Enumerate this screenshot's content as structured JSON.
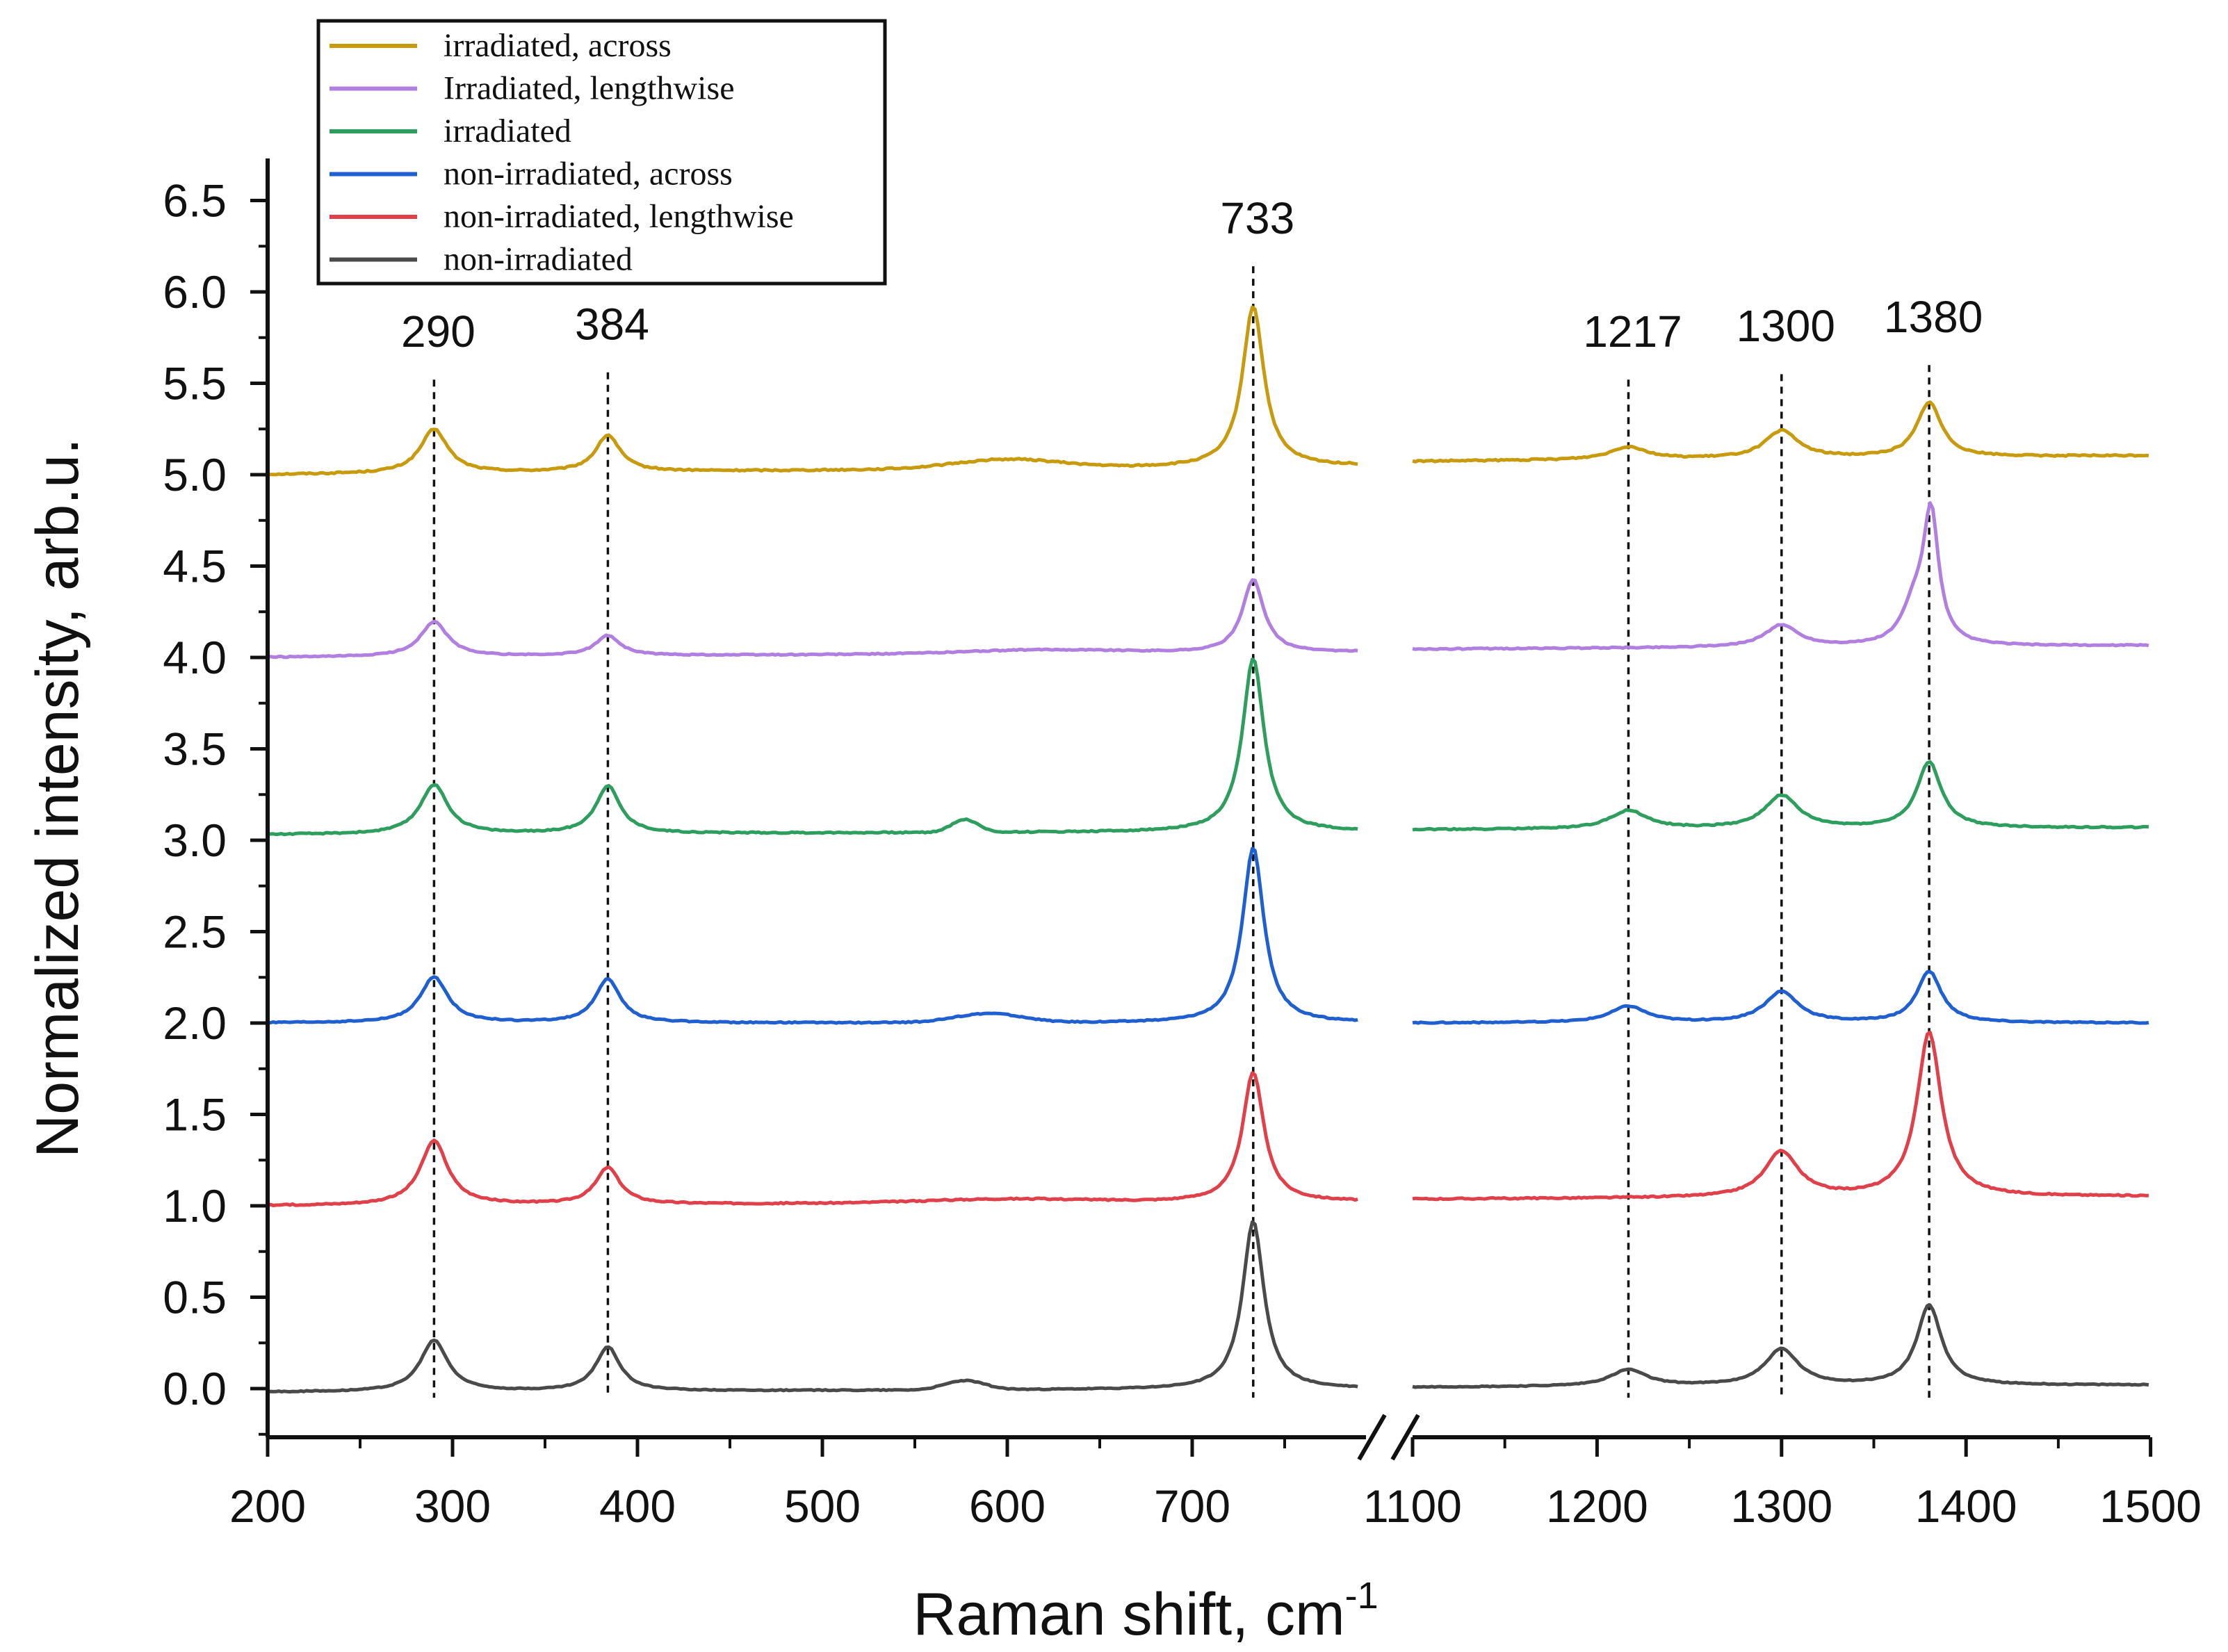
{
  "chart_data": {
    "type": "line",
    "title": "",
    "xlabel": "Raman shift, cm",
    "xlabel_sup": "-1",
    "ylabel": "Normalized intensity, arb.u.",
    "ylim": [
      -0.25,
      6.75
    ],
    "axis_break": [
      790,
      1100
    ],
    "x_segments": [
      [
        200,
        790
      ],
      [
        1100,
        1500
      ]
    ],
    "x_ticks": [
      {
        "value": 200,
        "label": "200"
      },
      {
        "value": 300,
        "label": "300"
      },
      {
        "value": 400,
        "label": "400"
      },
      {
        "value": 500,
        "label": "500"
      },
      {
        "value": 600,
        "label": "600"
      },
      {
        "value": 700,
        "label": "700"
      },
      {
        "value": 1100,
        "label": "1100"
      },
      {
        "value": 1200,
        "label": "1200"
      },
      {
        "value": 1300,
        "label": "1300"
      },
      {
        "value": 1400,
        "label": "1400"
      },
      {
        "value": 1500,
        "label": "1500"
      }
    ],
    "y_ticks": [
      "0.0",
      "0.5",
      "1.0",
      "1.5",
      "2.0",
      "2.5",
      "3.0",
      "3.5",
      "4.0",
      "4.5",
      "5.0",
      "5.5",
      "6.0",
      "6.5"
    ],
    "peak_lines": [
      {
        "value": 290,
        "label": "290",
        "label_y": 5.7
      },
      {
        "value": 384,
        "label": "384",
        "label_y": 5.74
      },
      {
        "value": 733,
        "label": "733",
        "label_y": 6.32
      },
      {
        "value": 1217,
        "label": "1217",
        "label_y": 5.7
      },
      {
        "value": 1300,
        "label": "1300",
        "label_y": 5.73
      },
      {
        "value": 1380,
        "label": "1380",
        "label_y": 5.78
      }
    ],
    "series": [
      {
        "name": "irradiated, across",
        "color": "#C89A0E",
        "baseline": 5.0,
        "slope": 8e-05,
        "noise": 0.008,
        "peaks": [
          [
            290,
            0.24,
            9
          ],
          [
            384,
            0.2,
            8
          ],
          [
            733,
            0.88,
            7
          ],
          [
            1217,
            0.07,
            12
          ],
          [
            1300,
            0.15,
            11
          ],
          [
            1380,
            0.3,
            8
          ]
        ],
        "bumps": [
          [
            600,
            0.05,
            40
          ]
        ]
      },
      {
        "name": "Irradiated, lengthwise",
        "color": "#B07FE0",
        "baseline": 4.0,
        "slope": 5e-05,
        "noise": 0.006,
        "peaks": [
          [
            290,
            0.19,
            9
          ],
          [
            384,
            0.11,
            8
          ],
          [
            733,
            0.4,
            7
          ],
          [
            1300,
            0.12,
            11
          ],
          [
            1372,
            0.2,
            8
          ],
          [
            1381,
            0.7,
            5
          ]
        ],
        "bumps": [
          [
            620,
            0.02,
            60
          ]
        ]
      },
      {
        "name": "irradiated",
        "color": "#2E9E5E",
        "baseline": 3.03,
        "slope": 3e-05,
        "noise": 0.007,
        "peaks": [
          [
            290,
            0.27,
            9
          ],
          [
            384,
            0.26,
            8
          ],
          [
            733,
            0.95,
            7
          ],
          [
            1217,
            0.1,
            12
          ],
          [
            1300,
            0.18,
            11
          ],
          [
            1380,
            0.36,
            8
          ]
        ],
        "bumps": [
          [
            577,
            0.07,
            10
          ]
        ]
      },
      {
        "name": "non-irradiated, across",
        "color": "#1F5FD0",
        "baseline": 2.0,
        "slope": 0.0,
        "noise": 0.006,
        "peaks": [
          [
            290,
            0.25,
            9
          ],
          [
            384,
            0.24,
            8
          ],
          [
            733,
            0.96,
            7
          ],
          [
            1217,
            0.09,
            12
          ],
          [
            1300,
            0.17,
            11
          ],
          [
            1380,
            0.28,
            8
          ]
        ],
        "bumps": [
          [
            590,
            0.05,
            25
          ]
        ]
      },
      {
        "name": "non-irradiated, lengthwise",
        "color": "#E0404A",
        "baseline": 1.0,
        "slope": 4e-05,
        "noise": 0.007,
        "peaks": [
          [
            290,
            0.35,
            9
          ],
          [
            384,
            0.2,
            8
          ],
          [
            733,
            0.71,
            7
          ],
          [
            1300,
            0.25,
            11
          ],
          [
            1380,
            0.9,
            8
          ]
        ],
        "bumps": [
          [
            600,
            0.02,
            60
          ]
        ]
      },
      {
        "name": "non-irradiated",
        "color": "#4A4A4A",
        "baseline": -0.02,
        "slope": 3e-05,
        "noise": 0.005,
        "peaks": [
          [
            290,
            0.28,
            9
          ],
          [
            384,
            0.24,
            8
          ],
          [
            733,
            0.92,
            7
          ],
          [
            1217,
            0.09,
            12
          ],
          [
            1300,
            0.2,
            11
          ],
          [
            1380,
            0.44,
            8
          ]
        ],
        "bumps": [
          [
            577,
            0.05,
            15
          ]
        ]
      }
    ]
  }
}
